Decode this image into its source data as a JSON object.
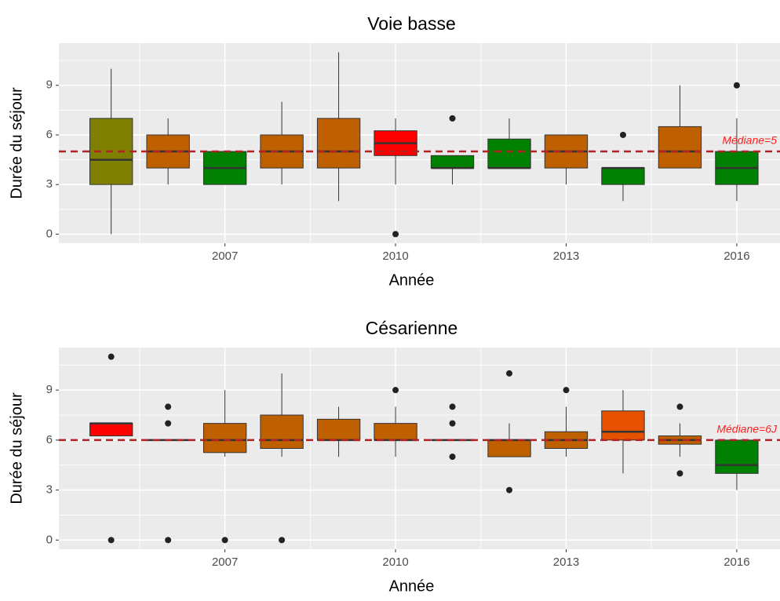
{
  "chart_data": [
    {
      "type": "box",
      "title": "Voie basse",
      "x_label": "Année",
      "y_label": "Durée du séjour",
      "xlim": [
        2004.08,
        2016.76
      ],
      "xticks": [
        2007,
        2010,
        2013,
        2016
      ],
      "ylim": [
        -0.55,
        11.55
      ],
      "yticks": [
        0,
        3,
        6,
        9
      ],
      "grid": true,
      "hline": {
        "value": 5,
        "label": "Médiane=5",
        "color": "#b22222"
      },
      "boxes": [
        {
          "x": 2005,
          "q1": 3,
          "median": 4.5,
          "q3": 7,
          "whisker_low": 0,
          "whisker_high": 10,
          "outliers": [],
          "color": "#808000"
        },
        {
          "x": 2006,
          "q1": 4,
          "median": 5,
          "q3": 6,
          "whisker_low": 3,
          "whisker_high": 7,
          "outliers": [],
          "color": "#bf6000"
        },
        {
          "x": 2007,
          "q1": 3,
          "median": 4,
          "q3": 5,
          "whisker_low": 3,
          "whisker_high": 5,
          "outliers": [],
          "color": "#008000"
        },
        {
          "x": 2008,
          "q1": 4,
          "median": 5,
          "q3": 6,
          "whisker_low": 3,
          "whisker_high": 8,
          "outliers": [],
          "color": "#bf6000"
        },
        {
          "x": 2009,
          "q1": 4,
          "median": 5,
          "q3": 7,
          "whisker_low": 2,
          "whisker_high": 11,
          "outliers": [],
          "color": "#bf6000"
        },
        {
          "x": 2010,
          "q1": 4.75,
          "median": 5.5,
          "q3": 6.25,
          "whisker_low": 3,
          "whisker_high": 7,
          "outliers": [
            0
          ],
          "color": "#ff0000"
        },
        {
          "x": 2011,
          "q1": 4,
          "median": 4,
          "q3": 4.75,
          "whisker_low": 3,
          "whisker_high": 4.75,
          "outliers": [
            7
          ],
          "color": "#008000"
        },
        {
          "x": 2012,
          "q1": 4,
          "median": 4,
          "q3": 5.75,
          "whisker_low": 4,
          "whisker_high": 7,
          "outliers": [],
          "color": "#008000"
        },
        {
          "x": 2013,
          "q1": 4,
          "median": 5,
          "q3": 6,
          "whisker_low": 3,
          "whisker_high": 6,
          "outliers": [],
          "color": "#bf6000"
        },
        {
          "x": 2014,
          "q1": 3,
          "median": 4,
          "q3": 4,
          "whisker_low": 2,
          "whisker_high": 4,
          "outliers": [
            6
          ],
          "color": "#008000"
        },
        {
          "x": 2015,
          "q1": 4,
          "median": 5,
          "q3": 6.5,
          "whisker_low": 4,
          "whisker_high": 9,
          "outliers": [],
          "color": "#bf6000"
        },
        {
          "x": 2016,
          "q1": 3,
          "median": 4,
          "q3": 5,
          "whisker_low": 2,
          "whisker_high": 7,
          "outliers": [
            9
          ],
          "color": "#008000"
        }
      ]
    },
    {
      "type": "box",
      "title": "Césarienne",
      "x_label": "Année",
      "y_label": "Durée du séjour",
      "xlim": [
        2004.08,
        2016.76
      ],
      "xticks": [
        2007,
        2010,
        2013,
        2016
      ],
      "ylim": [
        -0.55,
        11.55
      ],
      "yticks": [
        0,
        3,
        6,
        9
      ],
      "grid": true,
      "hline": {
        "value": 6,
        "label": "Médiane=6J",
        "color": "#b22222"
      },
      "boxes": [
        {
          "x": 2005,
          "q1": 6.25,
          "median": 7,
          "q3": 7,
          "whisker_low": 6.25,
          "whisker_high": 7,
          "outliers": [
            11,
            0
          ],
          "color": "#ff0000"
        },
        {
          "x": 2006,
          "q1": 6,
          "median": 6,
          "q3": 6,
          "whisker_low": 6,
          "whisker_high": 6,
          "outliers": [
            8,
            7,
            0
          ],
          "color": "#bf6000"
        },
        {
          "x": 2007,
          "q1": 5.25,
          "median": 6,
          "q3": 7,
          "whisker_low": 5,
          "whisker_high": 9,
          "outliers": [
            0
          ],
          "color": "#bf6000"
        },
        {
          "x": 2008,
          "q1": 5.5,
          "median": 6,
          "q3": 7.5,
          "whisker_low": 5,
          "whisker_high": 10,
          "outliers": [
            0
          ],
          "color": "#bf6000"
        },
        {
          "x": 2009,
          "q1": 6,
          "median": 6,
          "q3": 7.25,
          "whisker_low": 5,
          "whisker_high": 8,
          "outliers": [],
          "color": "#bf6000"
        },
        {
          "x": 2010,
          "q1": 6,
          "median": 6,
          "q3": 7,
          "whisker_low": 5,
          "whisker_high": 8,
          "outliers": [
            9
          ],
          "color": "#bf6000"
        },
        {
          "x": 2011,
          "q1": 6,
          "median": 6,
          "q3": 6,
          "whisker_low": 6,
          "whisker_high": 6,
          "outliers": [
            8,
            7,
            5
          ],
          "color": "#bf6000"
        },
        {
          "x": 2012,
          "q1": 5,
          "median": 6,
          "q3": 6,
          "whisker_low": 5,
          "whisker_high": 7,
          "outliers": [
            10,
            3
          ],
          "color": "#bf6000"
        },
        {
          "x": 2013,
          "q1": 5.5,
          "median": 6,
          "q3": 6.5,
          "whisker_low": 5,
          "whisker_high": 8,
          "outliers": [
            9
          ],
          "color": "#bf6000"
        },
        {
          "x": 2014,
          "q1": 6,
          "median": 6.5,
          "q3": 7.75,
          "whisker_low": 4,
          "whisker_high": 9,
          "outliers": [],
          "color": "#e65100"
        },
        {
          "x": 2015,
          "q1": 5.75,
          "median": 6,
          "q3": 6.25,
          "whisker_low": 5,
          "whisker_high": 7,
          "outliers": [
            8,
            4
          ],
          "color": "#bf6000"
        },
        {
          "x": 2016,
          "q1": 4,
          "median": 4.5,
          "q3": 6,
          "whisker_low": 3,
          "whisker_high": 6,
          "outliers": [],
          "color": "#008000"
        }
      ]
    }
  ]
}
